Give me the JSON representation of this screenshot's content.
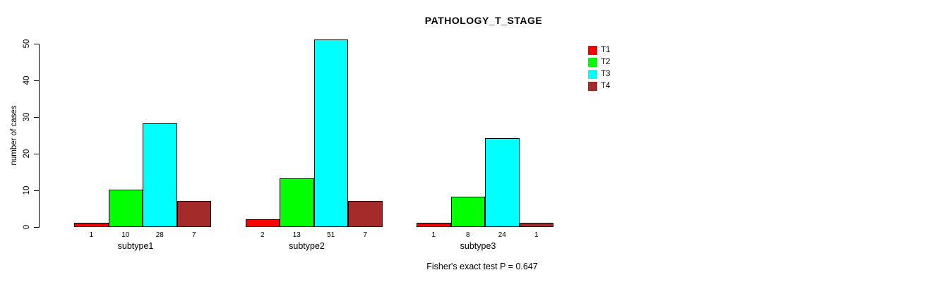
{
  "chart_data": {
    "type": "bar",
    "title": "PATHOLOGY_T_STAGE",
    "ylabel": "number of cases",
    "note": "Fisher's exact test P = 0.647",
    "ylim": [
      0,
      50
    ],
    "yticks": [
      0,
      10,
      20,
      30,
      40,
      50
    ],
    "categories": [
      "subtype1",
      "subtype2",
      "subtype3"
    ],
    "series": [
      {
        "name": "T1",
        "color": "#ff0000",
        "values": [
          1,
          2,
          1
        ]
      },
      {
        "name": "T2",
        "color": "#00ff00",
        "values": [
          10,
          13,
          8
        ]
      },
      {
        "name": "T3",
        "color": "#00ffff",
        "values": [
          28,
          51,
          24
        ]
      },
      {
        "name": "T4",
        "color": "#a52a2a",
        "values": [
          7,
          7,
          1
        ]
      }
    ],
    "bar_value_labels_shown": true,
    "legend_position": "top-right",
    "grid": false,
    "colors": {
      "T1": "#ff0000",
      "T2": "#00ff00",
      "T3": "#00ffff",
      "T4": "#a52a2a",
      "bar_border": "#000000",
      "text": "#000000",
      "background": "#ffffff"
    }
  }
}
